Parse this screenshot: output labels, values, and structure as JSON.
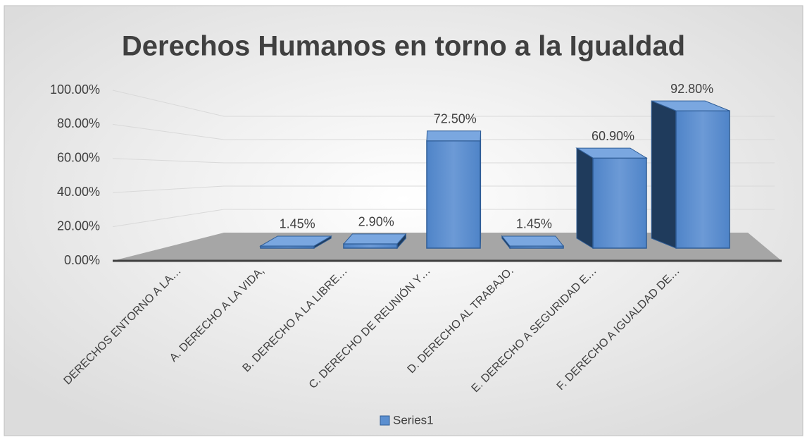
{
  "chart_data": {
    "type": "bar3d",
    "title": "Derechos Humanos en torno a la Igualdad",
    "categories": [
      "DERECHOS ENTORNO A LA…",
      "A. DERECHO A LA VIDA,",
      "B. DERECHO A LA LIBRE…",
      "C. DERECHO DE REUNIÓN Y…",
      "D. DERECHO AL TRABAJO.",
      "E. DERECHO A SEGURIDAD E…",
      "F. DERECHO A IGUALDAD DE…"
    ],
    "series": [
      {
        "name": "Series1",
        "color": "#5b8fd0",
        "values": [
          null,
          1.45,
          2.9,
          72.5,
          1.45,
          60.9,
          92.8
        ],
        "value_labels": [
          null,
          "1.45%",
          "2.90%",
          "72.50%",
          "1.45%",
          "60.90%",
          "92.80%"
        ]
      }
    ],
    "ylim": [
      0,
      100
    ],
    "yticks": [
      {
        "value": 0,
        "label": "0.00%"
      },
      {
        "value": 20,
        "label": "20.00%"
      },
      {
        "value": 40,
        "label": "40.00%"
      },
      {
        "value": 60,
        "label": "60.00%"
      },
      {
        "value": 80,
        "label": "80.00%"
      },
      {
        "value": 100,
        "label": "100.00%"
      }
    ],
    "grid": true,
    "legend": "bottom"
  }
}
